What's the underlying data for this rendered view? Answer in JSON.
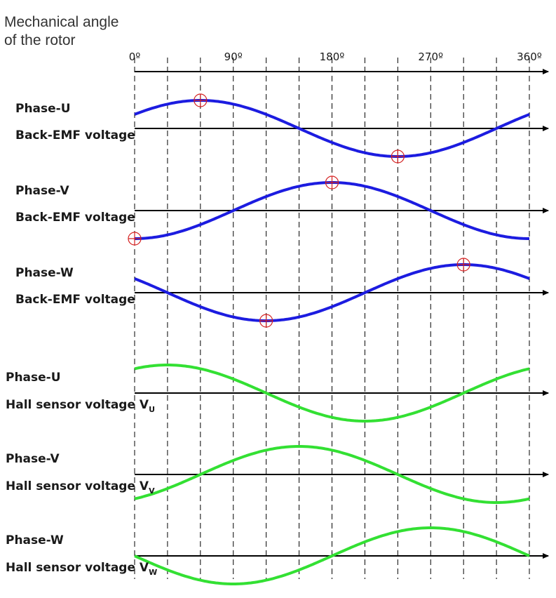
{
  "header": {
    "line1": "Mechanical angle",
    "line2": "of the rotor"
  },
  "axis": {
    "ticks": [
      "0º",
      "90º",
      "180º",
      "270º",
      "360º"
    ],
    "tick_angles": [
      0,
      90,
      180,
      270,
      360
    ],
    "gridline_angles": [
      0,
      30,
      60,
      90,
      120,
      150,
      180,
      210,
      240,
      270,
      300,
      330,
      360
    ]
  },
  "colors": {
    "back_emf": "#1c1ce0",
    "hall": "#33e033",
    "marker": "#d42020",
    "axis": "#000000"
  },
  "rows": [
    {
      "line1": "Phase-U",
      "line2": "Back-EMF voltage",
      "sub": "",
      "kind": "back_emf",
      "phase_deg": 0,
      "markers": [
        60,
        240
      ]
    },
    {
      "line1": "Phase-V",
      "line2": "Back-EMF voltage",
      "sub": "",
      "kind": "back_emf",
      "phase_deg": 120,
      "markers": [
        0,
        180
      ]
    },
    {
      "line1": "Phase-W",
      "line2": "Back-EMF voltage",
      "sub": "",
      "kind": "back_emf",
      "phase_deg": 240,
      "markers": [
        120,
        300
      ]
    },
    {
      "line1": "Phase-U",
      "line2": "Hall sensor voltage V",
      "sub": "U",
      "kind": "hall",
      "phase_deg": 0,
      "markers": []
    },
    {
      "line1": "Phase-V",
      "line2": "Hall sensor voltage V",
      "sub": "V",
      "kind": "hall",
      "phase_deg": 120,
      "markers": []
    },
    {
      "line1": "Phase-W",
      "line2": "Hall sensor voltage V",
      "sub": "W",
      "kind": "hall",
      "phase_deg": 240,
      "markers": []
    }
  ]
}
